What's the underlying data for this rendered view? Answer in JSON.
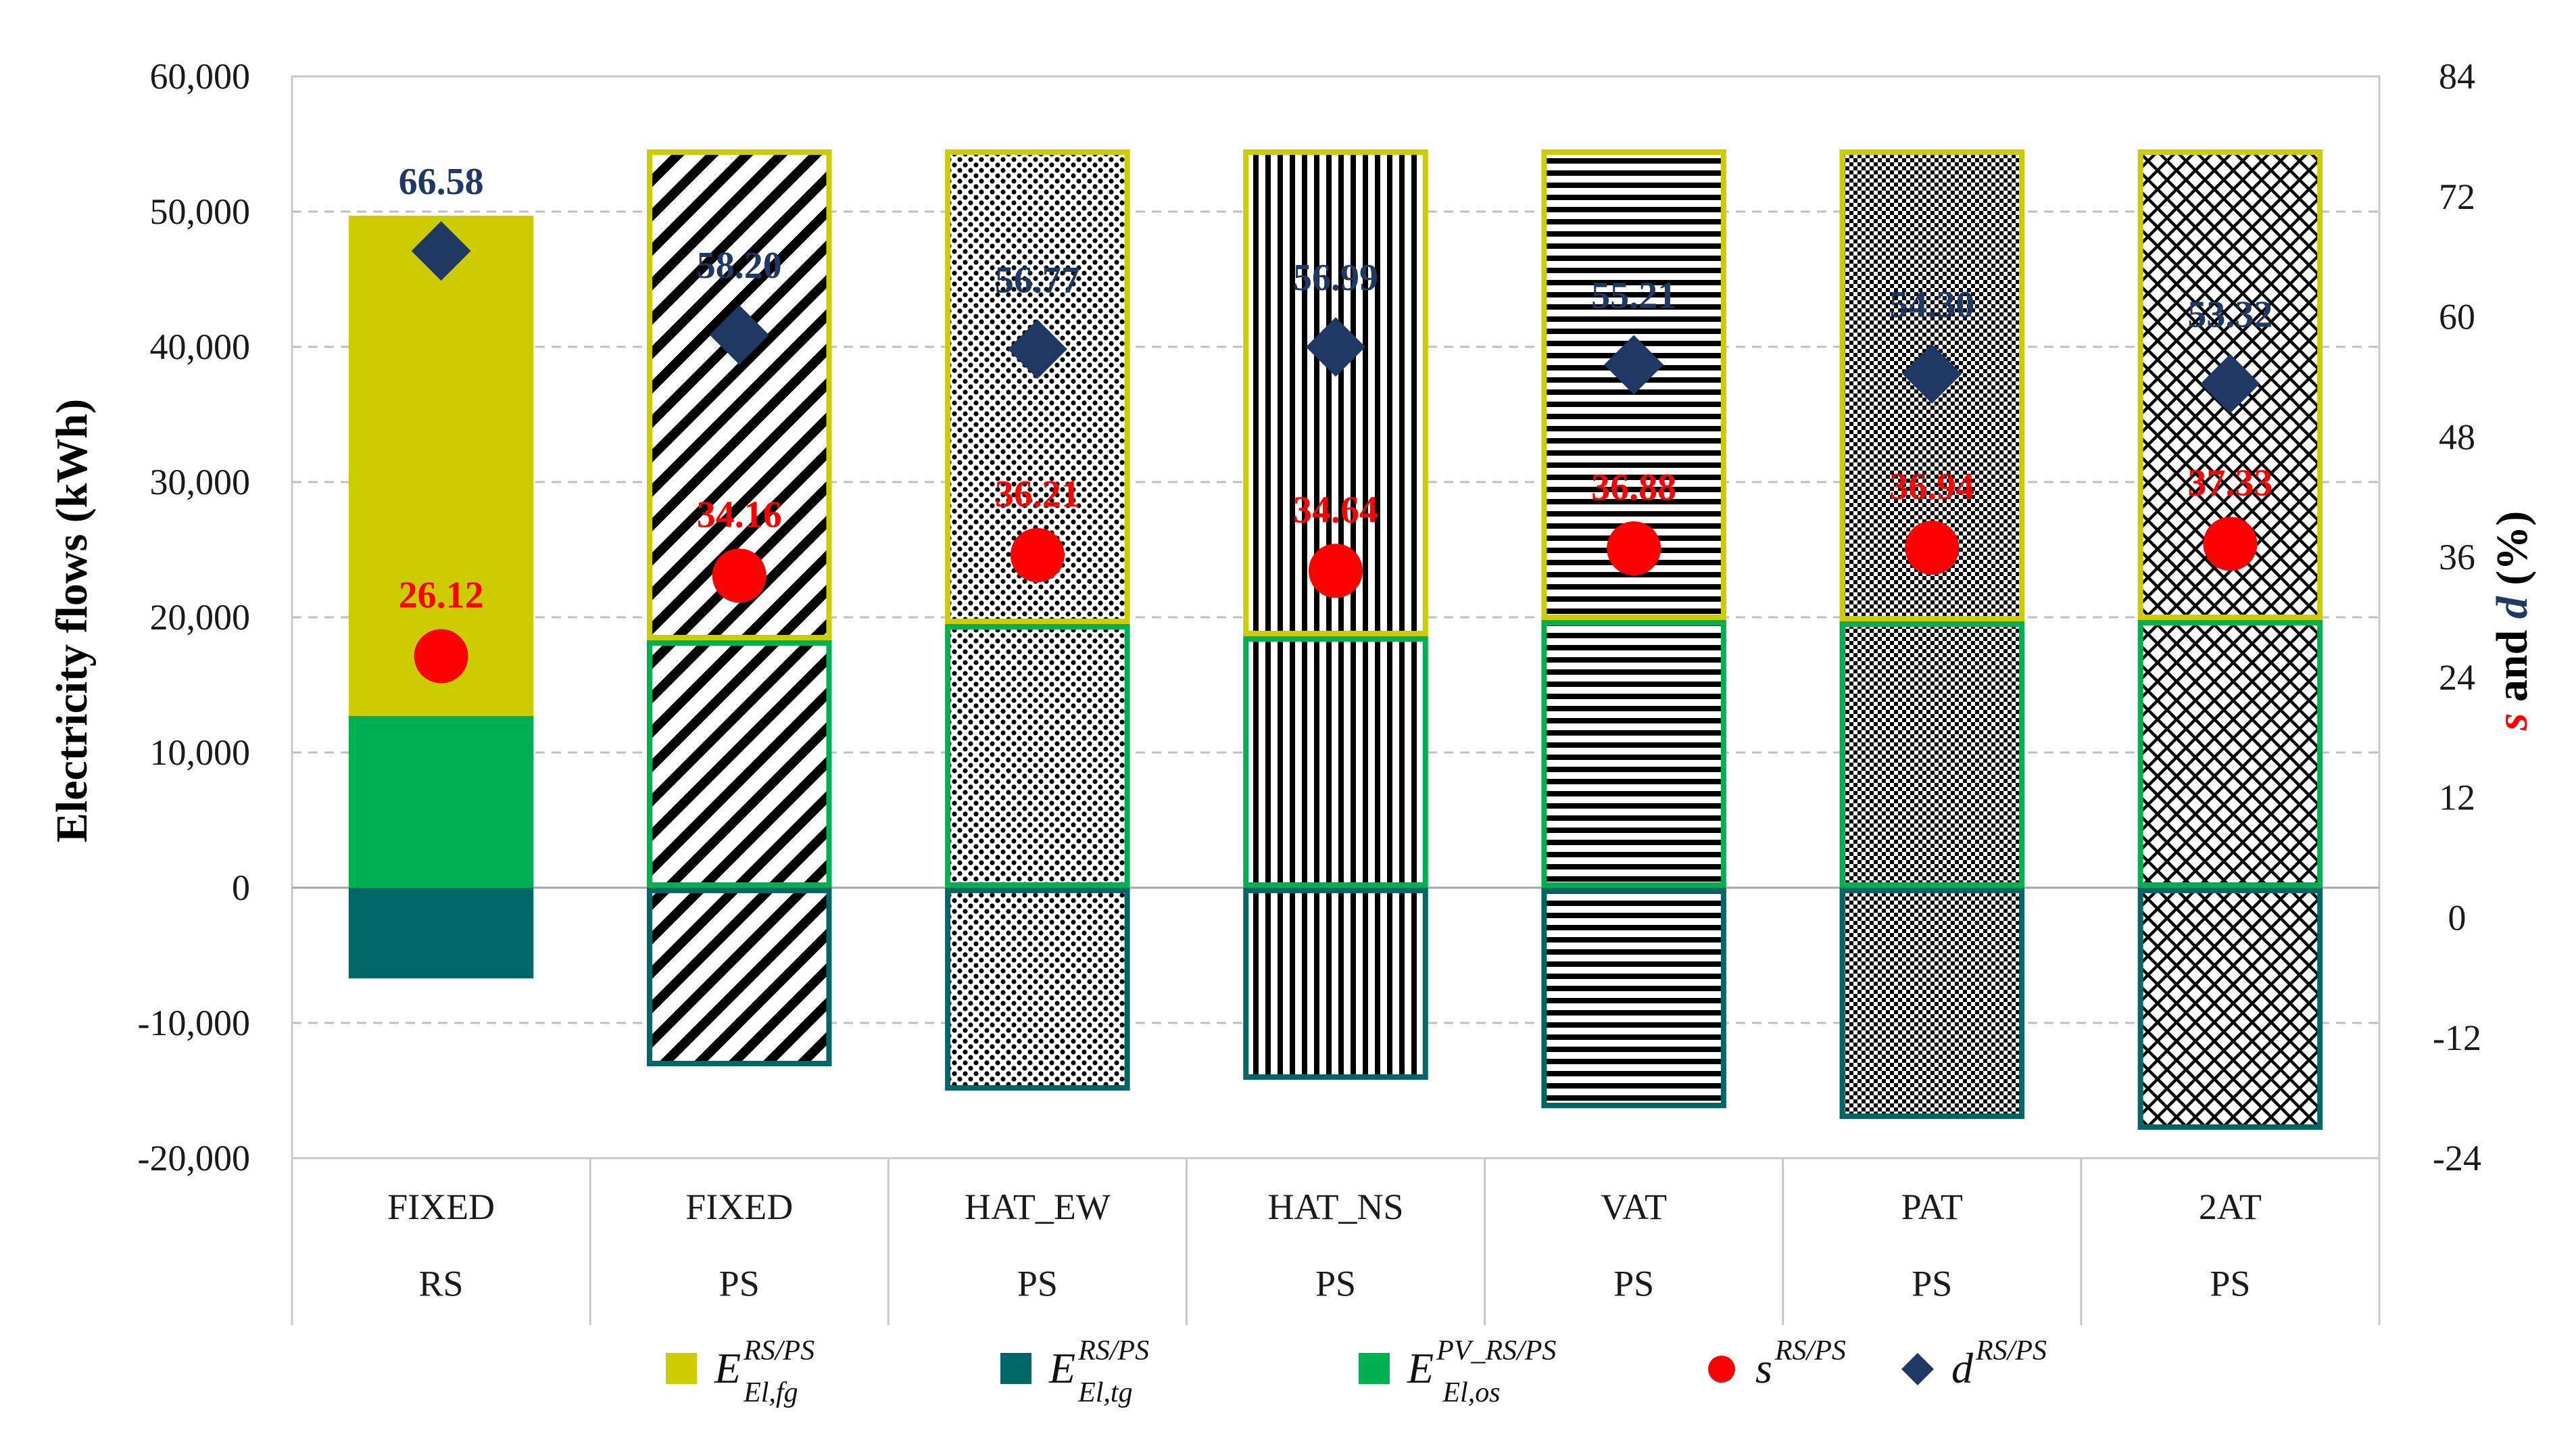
{
  "chart_data": {
    "type": "bar",
    "stacked": true,
    "left_axis": {
      "label": "Electricity flows (kWh)",
      "range": [
        -20000,
        60000
      ],
      "ticks": [
        "-20,000",
        "-10,000",
        "0",
        "10,000",
        "20,000",
        "30,000",
        "40,000",
        "50,000",
        "60,000"
      ],
      "tick_values": [
        -20000,
        -10000,
        0,
        10000,
        20000,
        30000,
        40000,
        50000,
        60000
      ]
    },
    "right_axis": {
      "label_parts": [
        "s",
        " and ",
        "d",
        " (%)"
      ],
      "range": [
        -24,
        84
      ],
      "ticks": [
        "-24",
        "-12",
        "0",
        "12",
        "24",
        "36",
        "48",
        "60",
        "72",
        "84"
      ],
      "tick_values": [
        -24,
        -12,
        0,
        12,
        24,
        36,
        48,
        60,
        72,
        84
      ]
    },
    "grid": true,
    "categories": [
      {
        "name": "FIXED",
        "group": "RS",
        "pattern": "solid"
      },
      {
        "name": "FIXED",
        "group": "PS",
        "pattern": "diag"
      },
      {
        "name": "HAT_EW",
        "group": "PS",
        "pattern": "dots"
      },
      {
        "name": "HAT_NS",
        "group": "PS",
        "pattern": "vert"
      },
      {
        "name": "VAT",
        "group": "PS",
        "pattern": "horiz"
      },
      {
        "name": "PAT",
        "group": "PS",
        "pattern": "fine"
      },
      {
        "name": "2AT",
        "group": "PS",
        "pattern": "cross"
      }
    ],
    "series": [
      {
        "name": "E_El,fg RS/PS",
        "color": "#cccc00",
        "axis": "left",
        "values": [
          37000,
          36300,
          35100,
          36000,
          34800,
          34900,
          34800
        ]
      },
      {
        "name": "E_El,os PV_RS/PS",
        "color": "#00b050",
        "axis": "left",
        "values": [
          12700,
          18300,
          19500,
          18600,
          19800,
          19700,
          19800
        ]
      },
      {
        "name": "E_El,tg RS/PS",
        "color": "#006666",
        "axis": "left",
        "values": [
          -6700,
          -13200,
          -15000,
          -14200,
          -16300,
          -17100,
          -17900
        ]
      },
      {
        "name": "s RS/PS",
        "color": "#ff0000",
        "marker": "circle",
        "axis": "right",
        "values": [
          26.12,
          34.16,
          36.21,
          34.64,
          36.88,
          36.94,
          37.33
        ],
        "labels": [
          "26.12",
          "34.16",
          "36.21",
          "34.64",
          "36.88",
          "36.94",
          "37.33"
        ]
      },
      {
        "name": "d RS/PS",
        "color": "#1f3864",
        "marker": "diamond",
        "axis": "right",
        "values": [
          66.58,
          58.2,
          56.77,
          56.99,
          55.21,
          54.3,
          53.32
        ],
        "labels": [
          "66.58",
          "58.20",
          "56.77",
          "56.99",
          "55.21",
          "54.30",
          "53.32"
        ]
      }
    ],
    "legend": {
      "position": "bottom",
      "entries": [
        {
          "symbol": "E",
          "sup": "RS/PS",
          "sub": "El,fg",
          "color": "#cccc00"
        },
        {
          "symbol": "E",
          "sup": "RS/PS",
          "sub": "El,tg",
          "color": "#006666"
        },
        {
          "symbol": "E",
          "sup": "PV_RS/PS",
          "sub": "El,os",
          "color": "#00b050"
        },
        {
          "symbol": "s",
          "sup": "RS/PS",
          "sub": "",
          "color": "#ff0000"
        },
        {
          "symbol": "d",
          "sup": "RS/PS",
          "sub": "",
          "color": "#1f3864"
        }
      ]
    },
    "colors": {
      "frame": "#c8c8c8",
      "grid": "#bfbfbf",
      "axis_zero": "#a6a6a6"
    }
  }
}
